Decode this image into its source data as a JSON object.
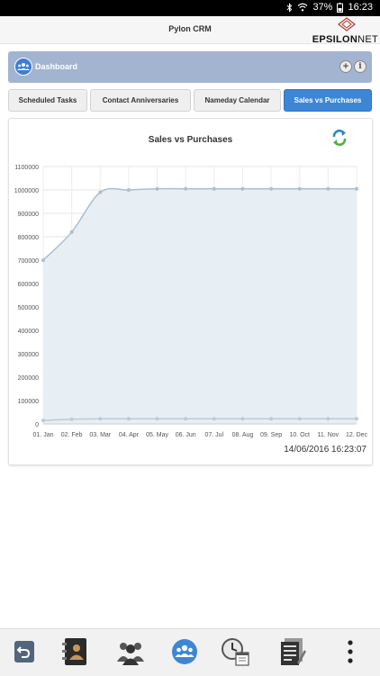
{
  "status": {
    "battery": "37%",
    "time": "16:23"
  },
  "app": {
    "title": "Pylon CRM",
    "brand_main": "EPSILON",
    "brand_sub": "NET"
  },
  "dashboard": {
    "label": "Dashboard"
  },
  "tabs": [
    {
      "label": "Scheduled Tasks",
      "active": false
    },
    {
      "label": "Contact Anniversaries",
      "active": false
    },
    {
      "label": "Nameday Calendar",
      "active": false
    },
    {
      "label": "Sales vs Purchases",
      "active": true
    }
  ],
  "chart": {
    "title": "Sales vs Purchases",
    "timestamp": "14/06/2016 16:23:07"
  },
  "chart_data": {
    "type": "area",
    "title": "Sales vs Purchases",
    "categories": [
      "01. Jan",
      "02. Feb",
      "03. Mar",
      "04. Apr",
      "05. May",
      "06. Jun",
      "07. Jul",
      "08. Aug",
      "09. Sep",
      "10. Oct",
      "11. Nov",
      "12. Dec"
    ],
    "yticks": [
      "0",
      "100000",
      "200000",
      "300000",
      "400000",
      "500000",
      "600000",
      "700000",
      "800000",
      "900000",
      "1000000",
      "1100000"
    ],
    "ylim": [
      0,
      1100000
    ],
    "grid": true,
    "series": [
      {
        "values": [
          700000,
          820000,
          990000,
          1000000,
          1005000,
          1005000,
          1005000,
          1005000,
          1005000,
          1005000,
          1005000,
          1005000
        ],
        "color": "#a9bfcf",
        "fill": "#e7eef4"
      },
      {
        "values": [
          15000,
          20000,
          22000,
          22000,
          22000,
          22000,
          22000,
          22000,
          22000,
          22000,
          22000,
          22000
        ],
        "color": "#b9cbd8",
        "fill": ""
      }
    ]
  },
  "colors": {
    "accent": "#3d86d6",
    "header": "#a2b4cf"
  },
  "bottom_icons": [
    "back-icon",
    "address-book-icon",
    "contacts-icon",
    "dashboard-icon",
    "clock-calendar-icon",
    "reports-icon",
    "more-icon"
  ]
}
